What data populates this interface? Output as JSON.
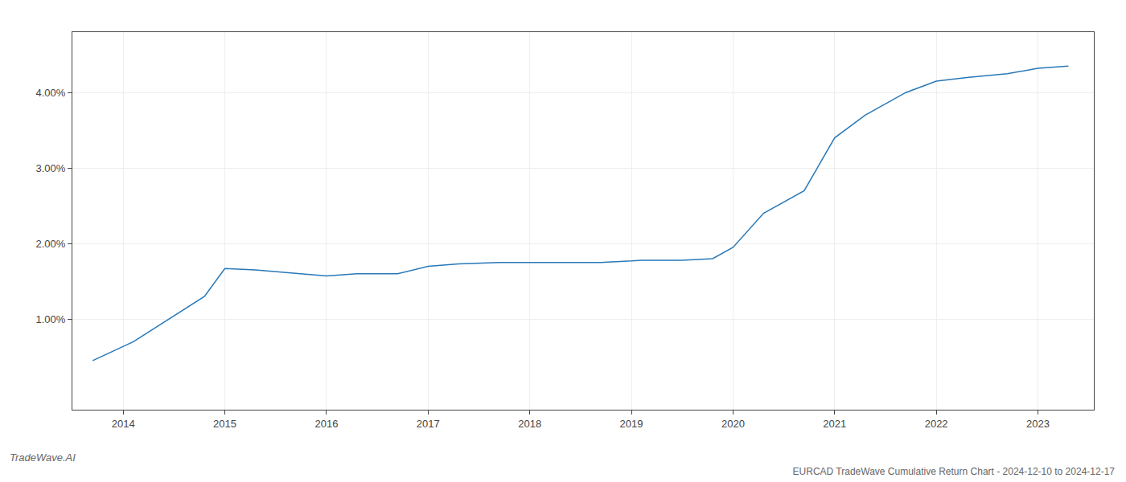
{
  "chart_data": {
    "type": "line",
    "title": "EURCAD TradeWave Cumulative Return Chart - 2024-12-10 to 2024-12-17",
    "annotations": [
      "TradeWave.AI"
    ],
    "x": [
      2013.7,
      2014.1,
      2014.8,
      2015.0,
      2015.3,
      2015.7,
      2016.0,
      2016.3,
      2016.7,
      2017.0,
      2017.3,
      2017.7,
      2018.0,
      2018.3,
      2018.7,
      2019.0,
      2019.1,
      2019.5,
      2019.8,
      2020.0,
      2020.3,
      2020.7,
      2021.0,
      2021.3,
      2021.7,
      2022.0,
      2022.3,
      2022.7,
      2023.0,
      2023.3
    ],
    "values": [
      0.0045,
      0.007,
      0.013,
      0.0167,
      0.0165,
      0.016,
      0.0157,
      0.016,
      0.016,
      0.017,
      0.0173,
      0.0175,
      0.0175,
      0.0175,
      0.0175,
      0.0177,
      0.0178,
      0.0178,
      0.018,
      0.0195,
      0.024,
      0.027,
      0.034,
      0.037,
      0.04,
      0.0415,
      0.042,
      0.0425,
      0.0432,
      0.0435
    ],
    "color": "#2878b8",
    "xlim": [
      2013.5,
      2023.55
    ],
    "ylim": [
      -0.002,
      0.048
    ],
    "xticks": [
      2014,
      2015,
      2016,
      2017,
      2018,
      2019,
      2020,
      2021,
      2022,
      2023
    ],
    "yticks": [
      {
        "value": 0.01,
        "label": "1.00%"
      },
      {
        "value": 0.02,
        "label": "2.00%"
      },
      {
        "value": 0.03,
        "label": "3.00%"
      },
      {
        "value": 0.04,
        "label": "4.00%"
      }
    ],
    "grid": true
  }
}
